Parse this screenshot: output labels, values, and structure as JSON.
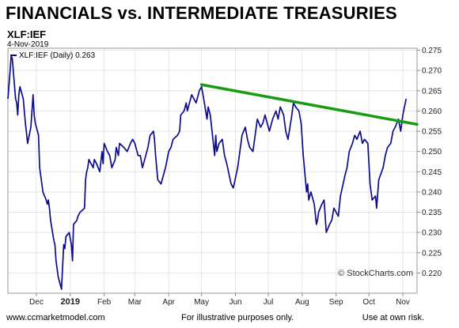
{
  "header": {
    "headline": "FINANCIALS vs. INTERMEDIATE TREASURIES",
    "symbol": "XLF:IEF",
    "date": "4-Nov-2019"
  },
  "legend": {
    "text": "XLF:IEF (Daily) 0.263"
  },
  "credit": "© StockCharts.com",
  "footer": {
    "left": "www.ccmarketmodel.com",
    "middle": "For illustrative purposes only.",
    "right": "Use at own risk."
  },
  "colors": {
    "price": "#0c0c8c",
    "trendline": "#1a9c12",
    "grid": "#e4e4e4"
  },
  "chart_data": {
    "type": "line",
    "ylim": [
      0.215,
      0.2755
    ],
    "y_ticks": [
      0.22,
      0.225,
      0.23,
      0.235,
      0.24,
      0.245,
      0.25,
      0.255,
      0.26,
      0.265,
      0.27,
      0.275
    ],
    "x_ticks": [
      {
        "label": "Dec",
        "x": "2018-12-01",
        "bold": false
      },
      {
        "label": "2019",
        "x": "2019-01-01",
        "bold": true
      },
      {
        "label": "Feb",
        "x": "2019-02-01",
        "bold": false
      },
      {
        "label": "Mar",
        "x": "2019-03-01",
        "bold": false
      },
      {
        "label": "Apr",
        "x": "2019-04-01",
        "bold": false
      },
      {
        "label": "May",
        "x": "2019-05-01",
        "bold": false
      },
      {
        "label": "Jun",
        "x": "2019-06-01",
        "bold": false
      },
      {
        "label": "Jul",
        "x": "2019-07-01",
        "bold": false
      },
      {
        "label": "Aug",
        "x": "2019-08-01",
        "bold": false
      },
      {
        "label": "Sep",
        "x": "2019-09-01",
        "bold": false
      },
      {
        "label": "Oct",
        "x": "2019-10-01",
        "bold": false
      },
      {
        "label": "Nov",
        "x": "2019-11-01",
        "bold": false
      }
    ],
    "series": [
      {
        "name": "XLF:IEF (Daily)",
        "points": [
          [
            "2018-11-05",
            0.263
          ],
          [
            "2018-11-07",
            0.27
          ],
          [
            "2018-11-08",
            0.2735
          ],
          [
            "2018-11-09",
            0.273
          ],
          [
            "2018-11-12",
            0.263
          ],
          [
            "2018-11-13",
            0.262
          ],
          [
            "2018-11-14",
            0.259
          ],
          [
            "2018-11-15",
            0.264
          ],
          [
            "2018-11-16",
            0.266
          ],
          [
            "2018-11-19",
            0.263
          ],
          [
            "2018-11-20",
            0.26
          ],
          [
            "2018-11-21",
            0.257
          ],
          [
            "2018-11-23",
            0.252
          ],
          [
            "2018-11-26",
            0.256
          ],
          [
            "2018-11-27",
            0.26
          ],
          [
            "2018-11-28",
            0.264
          ],
          [
            "2018-11-29",
            0.259
          ],
          [
            "2018-11-30",
            0.257
          ],
          [
            "2018-12-03",
            0.254
          ],
          [
            "2018-12-04",
            0.246
          ],
          [
            "2018-12-06",
            0.242
          ],
          [
            "2018-12-07",
            0.24
          ],
          [
            "2018-12-10",
            0.238
          ],
          [
            "2018-12-11",
            0.237
          ],
          [
            "2018-12-12",
            0.238
          ],
          [
            "2018-12-13",
            0.236
          ],
          [
            "2018-12-14",
            0.233
          ],
          [
            "2018-12-17",
            0.228
          ],
          [
            "2018-12-18",
            0.227
          ],
          [
            "2018-12-19",
            0.223
          ],
          [
            "2018-12-20",
            0.221
          ],
          [
            "2018-12-21",
            0.219
          ],
          [
            "2018-12-24",
            0.216
          ],
          [
            "2018-12-26",
            0.227
          ],
          [
            "2018-12-27",
            0.226
          ],
          [
            "2018-12-28",
            0.229
          ],
          [
            "2018-12-31",
            0.23
          ],
          [
            "2019-01-02",
            0.227
          ],
          [
            "2019-01-03",
            0.223
          ],
          [
            "2019-01-04",
            0.232
          ],
          [
            "2019-01-07",
            0.233
          ],
          [
            "2019-01-08",
            0.234
          ],
          [
            "2019-01-10",
            0.235
          ],
          [
            "2019-01-14",
            0.236
          ],
          [
            "2019-01-15",
            0.243
          ],
          [
            "2019-01-16",
            0.245
          ],
          [
            "2019-01-17",
            0.246
          ],
          [
            "2019-01-18",
            0.248
          ],
          [
            "2019-01-22",
            0.246
          ],
          [
            "2019-01-23",
            0.248
          ],
          [
            "2019-01-25",
            0.247
          ],
          [
            "2019-01-28",
            0.245
          ],
          [
            "2019-01-30",
            0.25
          ],
          [
            "2019-01-31",
            0.247
          ],
          [
            "2019-02-01",
            0.252
          ],
          [
            "2019-02-04",
            0.25
          ],
          [
            "2019-02-06",
            0.249
          ],
          [
            "2019-02-08",
            0.246
          ],
          [
            "2019-02-11",
            0.248
          ],
          [
            "2019-02-12",
            0.251
          ],
          [
            "2019-02-14",
            0.249
          ],
          [
            "2019-02-15",
            0.252
          ],
          [
            "2019-02-19",
            0.251
          ],
          [
            "2019-02-22",
            0.25
          ],
          [
            "2019-02-25",
            0.252
          ],
          [
            "2019-02-27",
            0.253
          ],
          [
            "2019-03-01",
            0.252
          ],
          [
            "2019-03-04",
            0.249
          ],
          [
            "2019-03-06",
            0.249
          ],
          [
            "2019-03-08",
            0.246
          ],
          [
            "2019-03-11",
            0.249
          ],
          [
            "2019-03-13",
            0.251
          ],
          [
            "2019-03-15",
            0.254
          ],
          [
            "2019-03-18",
            0.255
          ],
          [
            "2019-03-19",
            0.253
          ],
          [
            "2019-03-20",
            0.249
          ],
          [
            "2019-03-22",
            0.243
          ],
          [
            "2019-03-25",
            0.242
          ],
          [
            "2019-03-27",
            0.244
          ],
          [
            "2019-03-29",
            0.246
          ],
          [
            "2019-04-01",
            0.25
          ],
          [
            "2019-04-03",
            0.251
          ],
          [
            "2019-04-05",
            0.253
          ],
          [
            "2019-04-09",
            0.254
          ],
          [
            "2019-04-11",
            0.255
          ],
          [
            "2019-04-12",
            0.259
          ],
          [
            "2019-04-15",
            0.26
          ],
          [
            "2019-04-17",
            0.262
          ],
          [
            "2019-04-18",
            0.26
          ],
          [
            "2019-04-22",
            0.264
          ],
          [
            "2019-04-24",
            0.263
          ],
          [
            "2019-04-26",
            0.262
          ],
          [
            "2019-04-29",
            0.265
          ],
          [
            "2019-05-01",
            0.266
          ],
          [
            "2019-05-03",
            0.263
          ],
          [
            "2019-05-06",
            0.258
          ],
          [
            "2019-05-07",
            0.261
          ],
          [
            "2019-05-08",
            0.26
          ],
          [
            "2019-05-09",
            0.259
          ],
          [
            "2019-05-13",
            0.249
          ],
          [
            "2019-05-14",
            0.254
          ],
          [
            "2019-05-15",
            0.25
          ],
          [
            "2019-05-17",
            0.252
          ],
          [
            "2019-05-20",
            0.253
          ],
          [
            "2019-05-22",
            0.249
          ],
          [
            "2019-05-24",
            0.247
          ],
          [
            "2019-05-28",
            0.242
          ],
          [
            "2019-05-30",
            0.241
          ],
          [
            "2019-06-03",
            0.246
          ],
          [
            "2019-06-05",
            0.25
          ],
          [
            "2019-06-07",
            0.254
          ],
          [
            "2019-06-10",
            0.256
          ],
          [
            "2019-06-12",
            0.253
          ],
          [
            "2019-06-14",
            0.251
          ],
          [
            "2019-06-17",
            0.25
          ],
          [
            "2019-06-19",
            0.254
          ],
          [
            "2019-06-21",
            0.258
          ],
          [
            "2019-06-24",
            0.256
          ],
          [
            "2019-06-26",
            0.257
          ],
          [
            "2019-06-28",
            0.259
          ],
          [
            "2019-07-02",
            0.255
          ],
          [
            "2019-07-05",
            0.258
          ],
          [
            "2019-07-08",
            0.26
          ],
          [
            "2019-07-10",
            0.258
          ],
          [
            "2019-07-12",
            0.261
          ],
          [
            "2019-07-15",
            0.259
          ],
          [
            "2019-07-17",
            0.255
          ],
          [
            "2019-07-19",
            0.253
          ],
          [
            "2019-07-22",
            0.258
          ],
          [
            "2019-07-24",
            0.262
          ],
          [
            "2019-07-26",
            0.261
          ],
          [
            "2019-07-29",
            0.26
          ],
          [
            "2019-07-31",
            0.257
          ],
          [
            "2019-08-02",
            0.249
          ],
          [
            "2019-08-05",
            0.24
          ],
          [
            "2019-08-06",
            0.242
          ],
          [
            "2019-08-07",
            0.238
          ],
          [
            "2019-08-09",
            0.24
          ],
          [
            "2019-08-12",
            0.237
          ],
          [
            "2019-08-14",
            0.232
          ],
          [
            "2019-08-15",
            0.233
          ],
          [
            "2019-08-16",
            0.235
          ],
          [
            "2019-08-19",
            0.237
          ],
          [
            "2019-08-21",
            0.238
          ],
          [
            "2019-08-23",
            0.23
          ],
          [
            "2019-08-26",
            0.232
          ],
          [
            "2019-08-28",
            0.233
          ],
          [
            "2019-08-30",
            0.236
          ],
          [
            "2019-09-03",
            0.234
          ],
          [
            "2019-09-05",
            0.239
          ],
          [
            "2019-09-09",
            0.244
          ],
          [
            "2019-09-11",
            0.246
          ],
          [
            "2019-09-13",
            0.25
          ],
          [
            "2019-09-16",
            0.252
          ],
          [
            "2019-09-18",
            0.254
          ],
          [
            "2019-09-20",
            0.253
          ],
          [
            "2019-09-23",
            0.255
          ],
          [
            "2019-09-25",
            0.252
          ],
          [
            "2019-09-27",
            0.253
          ],
          [
            "2019-09-30",
            0.252
          ],
          [
            "2019-10-02",
            0.242
          ],
          [
            "2019-10-04",
            0.238
          ],
          [
            "2019-10-07",
            0.239
          ],
          [
            "2019-10-08",
            0.236
          ],
          [
            "2019-10-10",
            0.243
          ],
          [
            "2019-10-14",
            0.246
          ],
          [
            "2019-10-16",
            0.249
          ],
          [
            "2019-10-18",
            0.251
          ],
          [
            "2019-10-21",
            0.252
          ],
          [
            "2019-10-23",
            0.255
          ],
          [
            "2019-10-25",
            0.256
          ],
          [
            "2019-10-28",
            0.258
          ],
          [
            "2019-10-30",
            0.255
          ],
          [
            "2019-11-01",
            0.259
          ],
          [
            "2019-11-04",
            0.263
          ]
        ]
      }
    ],
    "trendline": {
      "start": [
        "2019-05-01",
        0.2665
      ],
      "end": [
        "2019-11-14",
        0.2567
      ]
    }
  }
}
